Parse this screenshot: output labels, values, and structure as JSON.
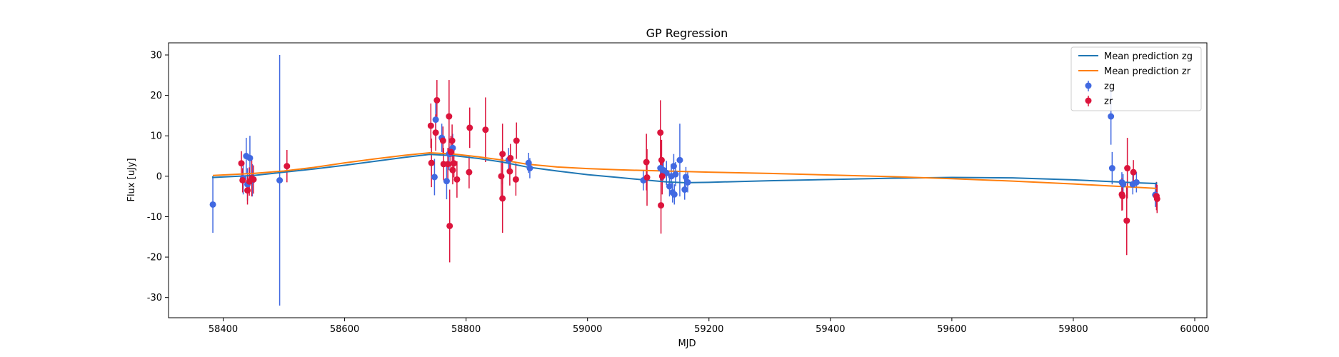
{
  "chart_data": {
    "type": "scatter",
    "title": "GP Regression",
    "xlabel": "MJD",
    "ylabel": "Flux [uJy]",
    "xlim": [
      58310,
      60020
    ],
    "ylim": [
      -35,
      33
    ],
    "xticks": [
      58400,
      58600,
      58800,
      59000,
      59200,
      59400,
      59600,
      59800,
      60000
    ],
    "yticks": [
      -30,
      -20,
      -10,
      0,
      10,
      20,
      30
    ],
    "grid": false,
    "legend_position": "top-right",
    "lines": [
      {
        "name": "Mean prediction zg",
        "color": "#1f77b4",
        "points": [
          [
            58383,
            0.0
          ],
          [
            58383,
            -0.3
          ],
          [
            58450,
            0.2
          ],
          [
            58500,
            1.0
          ],
          [
            58550,
            1.8
          ],
          [
            58600,
            2.7
          ],
          [
            58650,
            3.7
          ],
          [
            58700,
            4.7
          ],
          [
            58740,
            5.4
          ],
          [
            58780,
            5.1
          ],
          [
            58820,
            4.4
          ],
          [
            58860,
            3.5
          ],
          [
            58900,
            2.3
          ],
          [
            58950,
            1.3
          ],
          [
            59000,
            0.4
          ],
          [
            59050,
            -0.3
          ],
          [
            59100,
            -1.0
          ],
          [
            59130,
            -1.4
          ],
          [
            59160,
            -1.6
          ],
          [
            59200,
            -1.5
          ],
          [
            59300,
            -1.1
          ],
          [
            59400,
            -0.8
          ],
          [
            59500,
            -0.5
          ],
          [
            59600,
            -0.3
          ],
          [
            59700,
            -0.4
          ],
          [
            59800,
            -0.9
          ],
          [
            59860,
            -1.3
          ],
          [
            59900,
            -1.6
          ],
          [
            59937,
            -1.8
          ],
          [
            59937,
            -1.5
          ]
        ]
      },
      {
        "name": "Mean prediction zr",
        "color": "#ff7f0e",
        "points": [
          [
            58383,
            0.2
          ],
          [
            58450,
            0.7
          ],
          [
            58500,
            1.3
          ],
          [
            58550,
            2.2
          ],
          [
            58600,
            3.3
          ],
          [
            58650,
            4.3
          ],
          [
            58700,
            5.2
          ],
          [
            58740,
            5.8
          ],
          [
            58780,
            5.5
          ],
          [
            58820,
            4.8
          ],
          [
            58860,
            4.0
          ],
          [
            58900,
            3.0
          ],
          [
            58950,
            2.3
          ],
          [
            59000,
            1.9
          ],
          [
            59050,
            1.6
          ],
          [
            59100,
            1.4
          ],
          [
            59150,
            1.2
          ],
          [
            59200,
            1.0
          ],
          [
            59300,
            0.7
          ],
          [
            59400,
            0.3
          ],
          [
            59500,
            -0.1
          ],
          [
            59600,
            -0.6
          ],
          [
            59700,
            -1.2
          ],
          [
            59800,
            -1.9
          ],
          [
            59860,
            -2.4
          ],
          [
            59900,
            -2.7
          ],
          [
            59937,
            -3.0
          ]
        ]
      }
    ],
    "series": [
      {
        "name": "zg",
        "color": "#4169e1",
        "points": [
          [
            58383,
            -7.0,
            7.0
          ],
          [
            58433,
            -0.5,
            4.0
          ],
          [
            58438,
            5.0,
            4.5
          ],
          [
            58440,
            -2.0,
            4.0
          ],
          [
            58444,
            4.5,
            5.5
          ],
          [
            58448,
            -1.0,
            4.0
          ],
          [
            58493,
            -1.0,
            31.0
          ],
          [
            58748,
            -0.2,
            4.5
          ],
          [
            58750,
            14.0,
            5.0
          ],
          [
            58760,
            9.5,
            3.5
          ],
          [
            58768,
            -1.2,
            4.5
          ],
          [
            58772,
            5.5,
            4.0
          ],
          [
            58778,
            7.0,
            3.5
          ],
          [
            58870,
            4.0,
            3.0
          ],
          [
            58903,
            3.3,
            2.5
          ],
          [
            58905,
            2.0,
            2.5
          ],
          [
            59092,
            -1.0,
            2.5
          ],
          [
            59120,
            2.0,
            3.0
          ],
          [
            59125,
            1.5,
            2.5
          ],
          [
            59130,
            0.8,
            3.0
          ],
          [
            59135,
            -2.5,
            2.5
          ],
          [
            59138,
            0.0,
            3.0
          ],
          [
            59140,
            -4.0,
            2.5
          ],
          [
            59142,
            2.5,
            3.0
          ],
          [
            59143,
            -4.5,
            2.5
          ],
          [
            59145,
            0.5,
            3.0
          ],
          [
            59152,
            4.0,
            9.0
          ],
          [
            59160,
            -3.3,
            2.5
          ],
          [
            59162,
            -0.2,
            2.5
          ],
          [
            59165,
            -1.5,
            2.5
          ],
          [
            59862,
            14.8,
            7.0
          ],
          [
            59864,
            2.0,
            4.0
          ],
          [
            59880,
            -1.5,
            2.5
          ],
          [
            59882,
            -2.0,
            2.5
          ],
          [
            59898,
            -2.0,
            2.5
          ],
          [
            59904,
            -1.5,
            2.5
          ],
          [
            59935,
            -4.6,
            3.0
          ]
        ]
      },
      {
        "name": "zr",
        "color": "#dc143c",
        "points": [
          [
            58430,
            3.2,
            3.0
          ],
          [
            58432,
            -1.0,
            3.0
          ],
          [
            58440,
            -3.5,
            3.5
          ],
          [
            58443,
            -1.3,
            3.5
          ],
          [
            58447,
            -0.5,
            4.5
          ],
          [
            58450,
            -0.8,
            3.5
          ],
          [
            58505,
            2.5,
            4.0
          ],
          [
            58742,
            12.5,
            5.5
          ],
          [
            58743,
            3.3,
            6.0
          ],
          [
            58750,
            10.8,
            4.5
          ],
          [
            58752,
            18.8,
            5.0
          ],
          [
            58762,
            8.8,
            3.5
          ],
          [
            58763,
            3.0,
            4.0
          ],
          [
            58770,
            3.0,
            4.0
          ],
          [
            58772,
            14.8,
            9.0
          ],
          [
            58773,
            -12.3,
            9.0
          ],
          [
            58775,
            6.0,
            4.0
          ],
          [
            58777,
            8.8,
            4.0
          ],
          [
            58778,
            1.5,
            3.5
          ],
          [
            58780,
            3.2,
            3.5
          ],
          [
            58785,
            -0.8,
            4.5
          ],
          [
            58805,
            1.0,
            4.0
          ],
          [
            58806,
            12.0,
            5.0
          ],
          [
            58832,
            11.5,
            8.0
          ],
          [
            58858,
            0.0,
            5.5
          ],
          [
            58860,
            5.5,
            7.5
          ],
          [
            58860,
            -5.5,
            8.5
          ],
          [
            58872,
            1.2,
            3.5
          ],
          [
            58873,
            4.5,
            3.5
          ],
          [
            58882,
            -0.8,
            4.0
          ],
          [
            58883,
            8.8,
            4.5
          ],
          [
            59097,
            3.5,
            7.0
          ],
          [
            59098,
            -0.3,
            7.0
          ],
          [
            59120,
            10.8,
            8.0
          ],
          [
            59121,
            -7.2,
            7.0
          ],
          [
            59122,
            4.0,
            5.0
          ],
          [
            59123,
            0.0,
            4.5
          ],
          [
            59880,
            -4.5,
            4.0
          ],
          [
            59881,
            -4.9,
            3.5
          ],
          [
            59888,
            -11.0,
            8.5
          ],
          [
            59889,
            2.0,
            7.5
          ],
          [
            59899,
            1.0,
            3.0
          ],
          [
            59937,
            -4.9,
            3.5
          ],
          [
            59938,
            -5.6,
            3.5
          ]
        ]
      }
    ]
  },
  "legend": {
    "line_zg": "Mean prediction zg",
    "line_zr": "Mean prediction zr",
    "points_zg": "zg",
    "points_zr": "zr"
  }
}
